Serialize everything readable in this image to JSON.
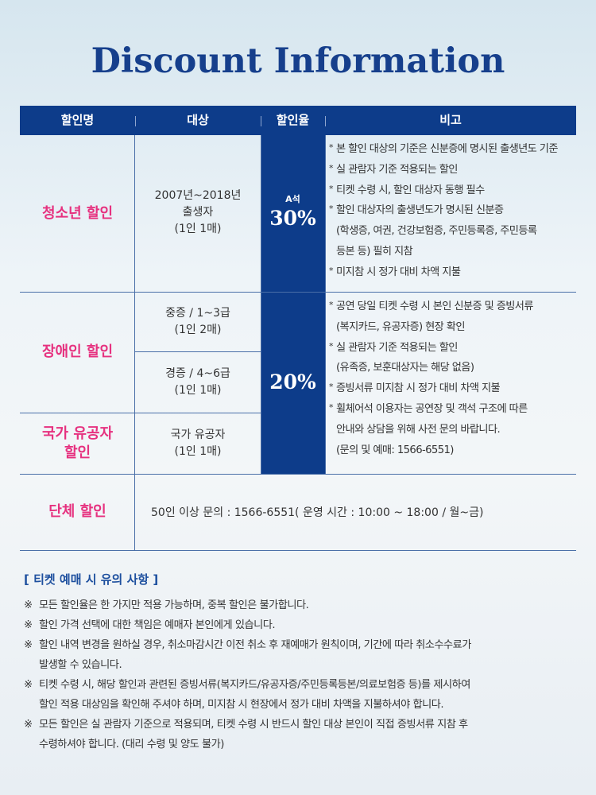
{
  "title": "Discount Information",
  "table": {
    "headers": [
      "할인명",
      "대상",
      "할인율",
      "비고"
    ],
    "rows": {
      "youth": {
        "name": "청소년 할인",
        "target": [
          "2007년~2018년",
          "출생자",
          "(1인 1매)"
        ],
        "seat": "A석",
        "rate": "30%",
        "notes": [
          [
            "본 할인 대상의 기준은 신분증에 명시된 출생년도 기준"
          ],
          [
            "실 관람자 기준 적용되는 할인"
          ],
          [
            "티켓 수령 시, 할인 대상자 동행 필수"
          ],
          [
            "할인 대상자의 출생년도가 명시된 신분증",
            "(학생증, 여권, 건강보험증, 주민등록증, 주민등록",
            "등본 등) 필히 지참"
          ],
          [
            "미지참 시 정가 대비 차액 지불"
          ]
        ]
      },
      "disabled": {
        "name": "장애인 할인",
        "targets": [
          [
            "중증 / 1~3급",
            "(1인 2매)"
          ],
          [
            "경증 / 4~6급",
            "(1인 1매)"
          ]
        ]
      },
      "merit": {
        "name": [
          "국가 유공자",
          "할인"
        ],
        "target": [
          "국가 유공자",
          "(1인 1매)"
        ]
      },
      "shared": {
        "rate": "20%",
        "notes": [
          [
            "공연 당일 티켓 수령 시 본인 신분증 및 증빙서류",
            "(복지카드, 유공자증) 현장 확인"
          ],
          [
            "실 관람자 기준 적용되는 할인",
            "(유족증, 보훈대상자는 해당 없음)"
          ],
          [
            "증빙서류 미지참 시 정가 대비 차액 지불"
          ],
          [
            "휠체어석 이용자는 공연장 및 객석 구조에 따른",
            "안내와 상담을 위해 사전 문의 바랍니다.",
            "(문의 및 예매:  1566-6551)"
          ]
        ]
      },
      "group": {
        "name": "단체 할인",
        "text": "50인 이상 문의 : 1566-6551( 운영 시간 : 10:00 ~ 18:00  / 월~금)"
      }
    }
  },
  "cautions": {
    "title": "[ 티켓 예매 시 유의 사항 ]",
    "marker": "※",
    "items": [
      "모든 할인율은 한 가지만 적용 가능하며, 중복 할인은 불가합니다.",
      "할인 가격 선택에 대한 책임은 예매자 본인에게 있습니다.",
      "할인 내역 변경을 원하실 경우, 취소마감시간 이전 취소 후 재예매가 원칙이며, 기간에 따라 취소수수료가\n발생할 수 있습니다.",
      "티켓 수령 시, 해당 할인과 관련된 증빙서류(복지카드/유공자증/주민등록등본/의료보험증 등)를 제시하여\n할인 적용 대상임을 확인해 주셔야 하며, 미지참 시 현장에서 정가 대비 차액을 지불하셔야 합니다.",
      "모든 할인은 실 관람자 기준으로 적용되며, 티켓 수령 시 반드시 할인 대상 본인이 직접 증빙서류 지참 후\n수령하셔야 합니다. (대리 수령 및 양도 불가)"
    ]
  },
  "colors": {
    "navy": "#0d3c8a",
    "pink": "#e6317f",
    "title_blue": "#163f8c",
    "caution_blue": "#1d4f9e"
  }
}
